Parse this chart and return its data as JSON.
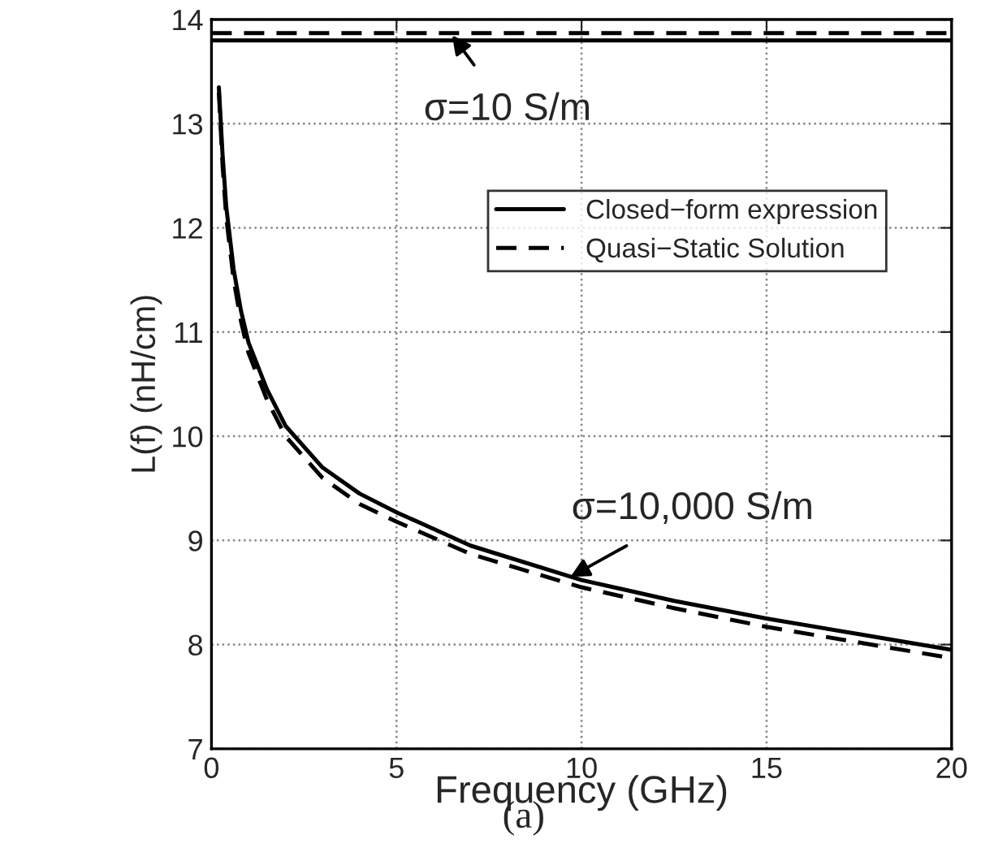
{
  "chart_data": {
    "type": "line",
    "xlabel": "Frequency (GHz)",
    "ylabel": "L(f) (nH/cm)",
    "xlim": [
      0,
      20
    ],
    "ylim": [
      7,
      14
    ],
    "xticks": [
      0,
      5,
      10,
      15,
      20
    ],
    "yticks": [
      7,
      8,
      9,
      10,
      11,
      12,
      13,
      14
    ],
    "grid": true,
    "legend": "right",
    "series": [
      {
        "name": "Closed−form expression",
        "color": "#000000",
        "line_style": "solid",
        "x": [
          0.2,
          0.3,
          0.4,
          0.6,
          0.8,
          1,
          1.5,
          2,
          3,
          4,
          5,
          7,
          10,
          12.5,
          15,
          17.5,
          20
        ],
        "values": [
          13.35,
          12.7,
          12.2,
          11.6,
          11.2,
          10.9,
          10.45,
          10.1,
          9.7,
          9.45,
          9.27,
          8.95,
          8.62,
          8.42,
          8.25,
          8.1,
          7.95
        ]
      },
      {
        "name": "Quasi−Static Solution",
        "color": "#000000",
        "line_style": "dashed",
        "x": [
          0.2,
          0.3,
          0.4,
          0.6,
          0.8,
          1,
          1.5,
          2,
          3,
          4,
          5,
          7,
          10,
          12.5,
          15,
          17.5,
          20
        ],
        "values": [
          13.3,
          12.6,
          12.1,
          11.5,
          11.1,
          10.8,
          10.35,
          10.0,
          9.6,
          9.35,
          9.18,
          8.87,
          8.55,
          8.35,
          8.17,
          8.02,
          7.87
        ]
      },
      {
        "color": "#000000",
        "line_style": "solid",
        "x": [
          0,
          20
        ],
        "values": [
          13.8,
          13.8
        ]
      },
      {
        "color": "#000000",
        "line_style": "dashed",
        "x": [
          0,
          20
        ],
        "values": [
          13.87,
          13.87
        ]
      }
    ],
    "annotations": [
      {
        "text": "σ=10 S/m",
        "x": 6.5,
        "y": 13.85
      },
      {
        "text": "σ=10,000 S/m",
        "x": 9.7,
        "y": 8.65
      },
      "(a)"
    ]
  }
}
